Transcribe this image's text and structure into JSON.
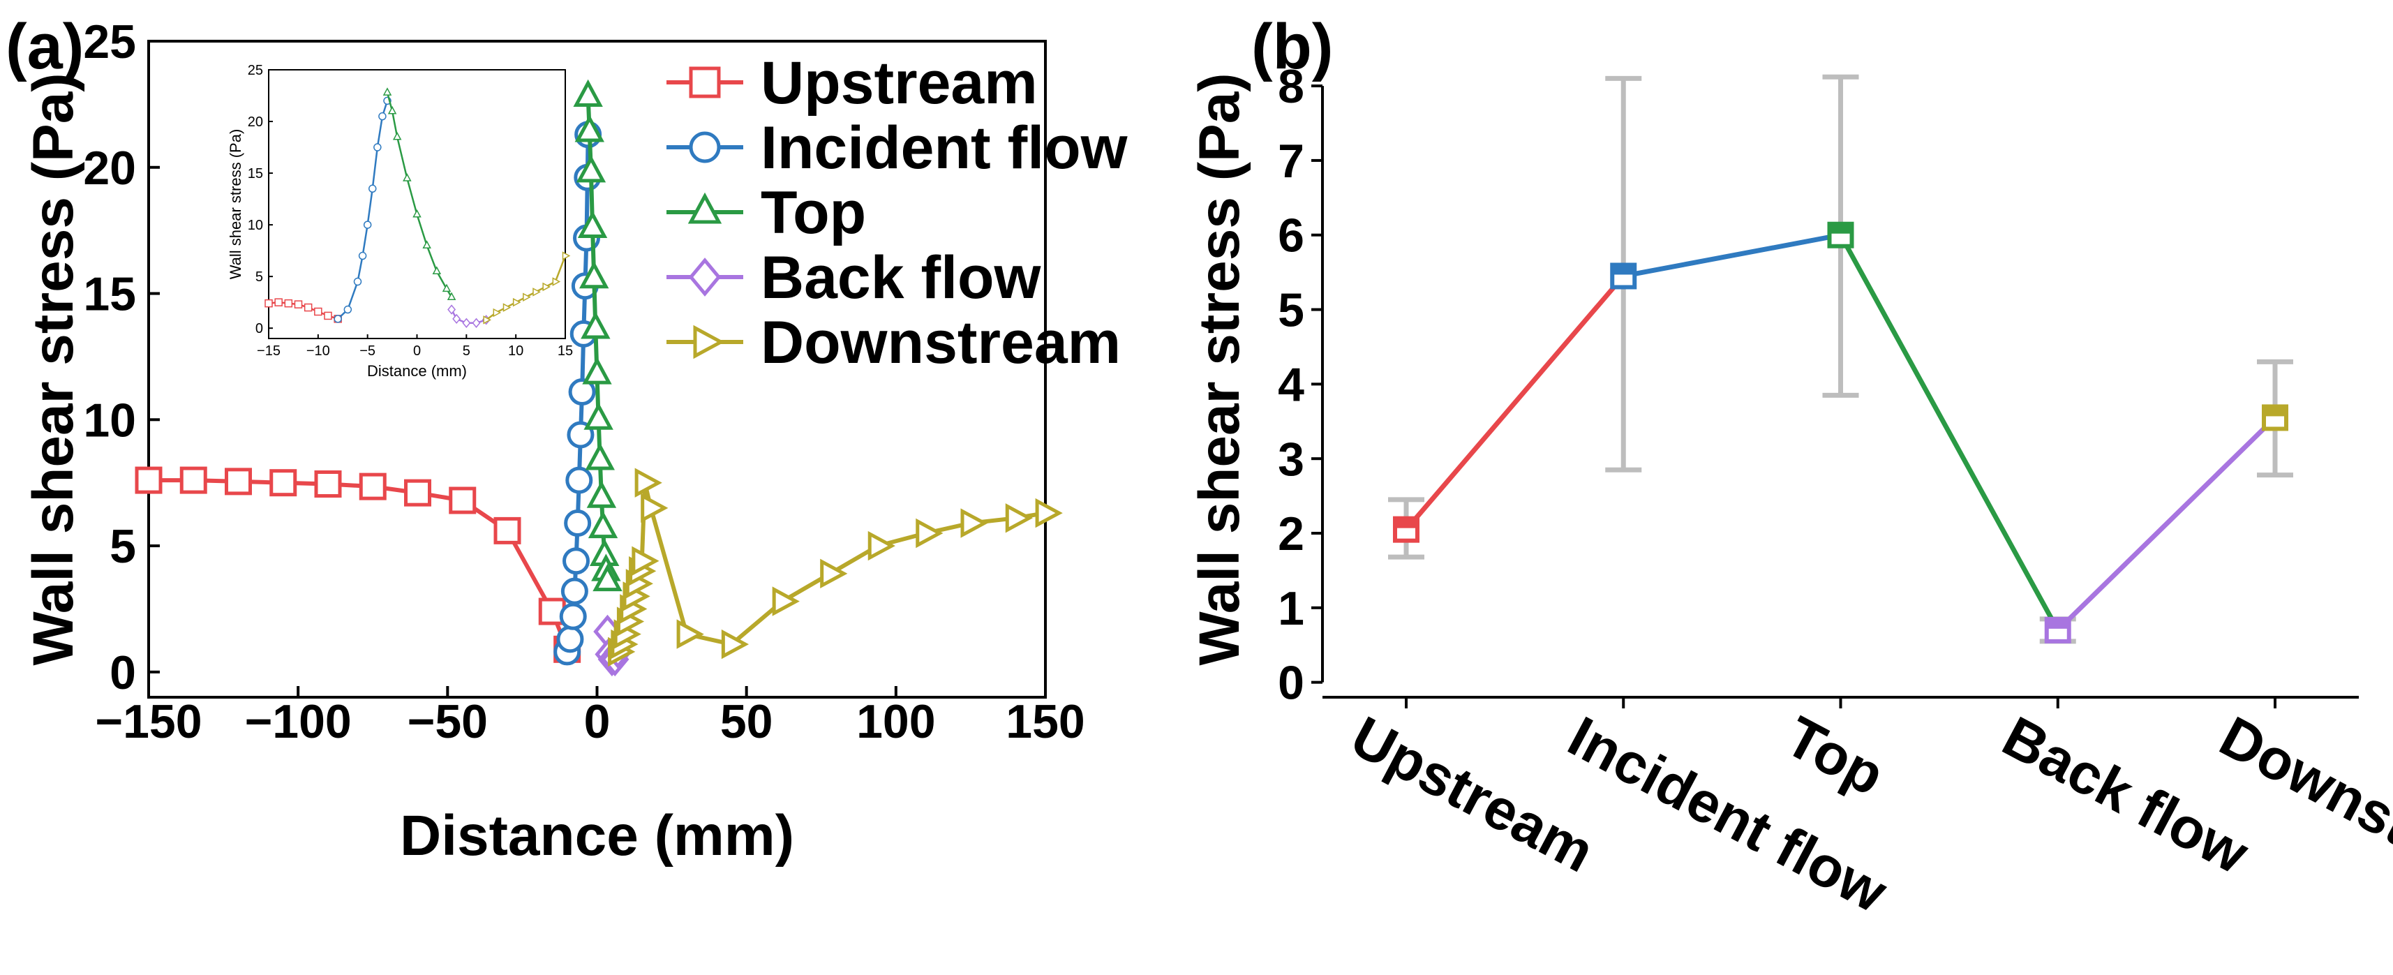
{
  "colors": {
    "upstream": "#e8474b",
    "incident": "#2f7ac0",
    "top": "#2a9a44",
    "back": "#a875e0",
    "downstream": "#b8a82a",
    "errorbar": "#bdbdbd"
  },
  "panel_a_label": "(a)",
  "panel_b_label": "(b)",
  "chart_data": [
    {
      "id": "a",
      "type": "line",
      "xlabel": "Distance (mm)",
      "ylabel": "Wall shear stress (Pa)",
      "xlim": [
        -150,
        150
      ],
      "ylim": [
        -1,
        25
      ],
      "xticks": [
        -150,
        -100,
        -50,
        0,
        50,
        100,
        150
      ],
      "xtick_labels": [
        "−150",
        "−100",
        "−50",
        "0",
        "50",
        "100",
        "150"
      ],
      "yticks": [
        0,
        5,
        10,
        15,
        20,
        25
      ],
      "legend_position": "top-right",
      "series": [
        {
          "name": "Upstream",
          "key": "upstream",
          "marker": "square",
          "x": [
            -150,
            -135,
            -120,
            -105,
            -90,
            -75,
            -60,
            -45,
            -30,
            -15,
            -10
          ],
          "y": [
            7.6,
            7.6,
            7.55,
            7.5,
            7.45,
            7.35,
            7.1,
            6.8,
            5.6,
            2.4,
            0.9
          ]
        },
        {
          "name": "Incident flow",
          "key": "incident",
          "marker": "circle",
          "x": [
            -10,
            -9,
            -8,
            -7.5,
            -7,
            -6.5,
            -6,
            -5.5,
            -5,
            -4.5,
            -4,
            -3.5,
            -3.2,
            -3
          ],
          "y": [
            0.8,
            1.3,
            2.2,
            3.2,
            4.4,
            5.9,
            7.6,
            9.4,
            11.1,
            13.4,
            15.3,
            17.2,
            19.6,
            21.3
          ]
        },
        {
          "name": "Top",
          "key": "top",
          "marker": "triangle",
          "x": [
            -3,
            -2.5,
            -2,
            -1.5,
            -1,
            -0.5,
            0,
            0.5,
            1,
            1.5,
            2,
            2.5,
            3,
            3.5
          ],
          "y": [
            22.8,
            21.4,
            19.8,
            17.6,
            15.6,
            13.6,
            11.8,
            10.0,
            8.4,
            6.9,
            5.7,
            4.6,
            4.0,
            3.6
          ]
        },
        {
          "name": "Back flow",
          "key": "back",
          "marker": "diamond",
          "x": [
            3.5,
            4,
            5,
            6,
            7
          ],
          "y": [
            1.6,
            0.7,
            0.5,
            0.5,
            0.8
          ]
        },
        {
          "name": "Downstream",
          "key": "downstream",
          "marker": "triangle-right",
          "x": [
            7,
            8,
            9,
            10,
            11,
            12,
            13,
            14,
            15,
            16,
            18,
            30,
            45,
            62,
            78,
            94,
            110,
            125,
            140,
            150
          ],
          "y": [
            0.8,
            1.1,
            1.5,
            2.0,
            2.5,
            3.0,
            3.5,
            4.0,
            4.4,
            7.5,
            6.5,
            1.5,
            1.1,
            2.8,
            3.9,
            5.0,
            5.5,
            5.9,
            6.1,
            6.3
          ]
        }
      ],
      "inset": {
        "xlabel": "Distance (mm)",
        "ylabel": "Wall shear stress (Pa)",
        "xlim": [
          -15,
          15
        ],
        "ylim": [
          -1,
          25
        ],
        "xticks": [
          -15,
          -10,
          -5,
          0,
          5,
          10,
          15
        ],
        "xtick_labels": [
          "−15",
          "−10",
          "−5",
          "0",
          "5",
          "10",
          "15"
        ],
        "yticks": [
          0,
          5,
          10,
          15,
          20,
          25
        ],
        "series": [
          {
            "key": "upstream",
            "x": [
              -15,
              -14,
              -13,
              -12,
              -11,
              -10,
              -9,
              -8
            ],
            "y": [
              2.4,
              2.5,
              2.4,
              2.3,
              2.0,
              1.6,
              1.2,
              0.9
            ]
          },
          {
            "key": "incident",
            "x": [
              -8,
              -7,
              -6,
              -5.5,
              -5,
              -4.5,
              -4,
              -3.5,
              -3
            ],
            "y": [
              0.9,
              1.8,
              4.5,
              7.0,
              10.0,
              13.5,
              17.5,
              20.5,
              22.0
            ]
          },
          {
            "key": "top",
            "x": [
              -3,
              -2.5,
              -2,
              -1,
              0,
              1,
              2,
              3,
              3.5
            ],
            "y": [
              22.8,
              21.0,
              18.5,
              14.5,
              11.0,
              8.0,
              5.5,
              3.8,
              3.0
            ]
          },
          {
            "key": "back",
            "x": [
              3.5,
              4,
              5,
              6,
              7
            ],
            "y": [
              1.8,
              0.9,
              0.5,
              0.5,
              0.8
            ]
          },
          {
            "key": "downstream",
            "x": [
              7,
              8,
              9,
              10,
              11,
              12,
              13,
              14,
              15
            ],
            "y": [
              0.8,
              1.5,
              2.0,
              2.5,
              3.0,
              3.5,
              4.0,
              4.5,
              7.0
            ]
          }
        ]
      }
    },
    {
      "id": "b",
      "type": "line",
      "xlabel": "",
      "ylabel": "Wall shear stress (Pa)",
      "ylim": [
        -0.2,
        8.6
      ],
      "yticks": [
        0,
        1,
        2,
        3,
        4,
        5,
        6,
        7,
        8
      ],
      "categories": [
        "Upstream",
        "Incident flow",
        "Top",
        "Back flow",
        "Downstream"
      ],
      "keys": [
        "upstream",
        "incident",
        "top",
        "back",
        "downstream"
      ],
      "values": [
        2.05,
        5.45,
        6.0,
        0.7,
        3.55
      ],
      "error_low": [
        1.68,
        2.85,
        3.85,
        0.55,
        2.78
      ],
      "error_high": [
        2.45,
        8.1,
        8.12,
        0.85,
        4.3
      ]
    }
  ]
}
